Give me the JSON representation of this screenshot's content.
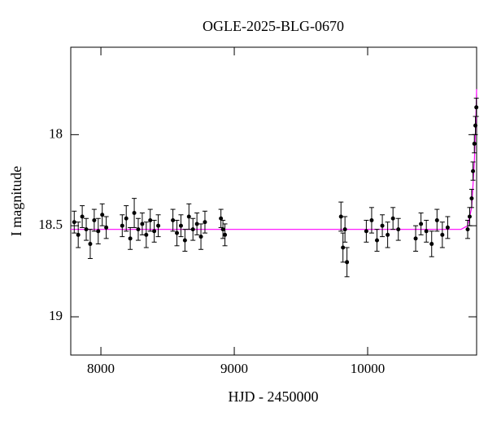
{
  "chart_data": {
    "type": "errorbar-scatter",
    "title": "OGLE-2025-BLG-0670",
    "x_label": "HJD - 2450000",
    "y_label": "I magnitude",
    "xlim": [
      7774,
      10817
    ],
    "xticks": [
      8000,
      9000,
      10000
    ],
    "ylim": [
      19.21,
      17.52
    ],
    "yticks": [
      18,
      18.5,
      19
    ],
    "points": {
      "color": "#000000",
      "x": [
        7800,
        7830,
        7860,
        7890,
        7920,
        7950,
        7980,
        8010,
        8040,
        8160,
        8190,
        8220,
        8250,
        8280,
        8310,
        8340,
        8370,
        8400,
        8430,
        8540,
        8570,
        8600,
        8630,
        8660,
        8690,
        8720,
        8750,
        8780,
        8900,
        8915,
        8930,
        9800,
        9815,
        9830,
        9845,
        9990,
        10030,
        10070,
        10110,
        10150,
        10190,
        10230,
        10360,
        10400,
        10440,
        10480,
        10520,
        10560,
        10600,
        10750,
        10765,
        10780,
        10790,
        10800,
        10808,
        10815
      ],
      "values": [
        18.48,
        18.55,
        18.45,
        18.52,
        18.6,
        18.47,
        18.53,
        18.44,
        18.51,
        18.5,
        18.46,
        18.57,
        18.43,
        18.52,
        18.49,
        18.55,
        18.47,
        18.53,
        18.5,
        18.47,
        18.54,
        18.5,
        18.58,
        18.45,
        18.52,
        18.49,
        18.56,
        18.48,
        18.46,
        18.52,
        18.55,
        18.45,
        18.62,
        18.52,
        18.7,
        18.53,
        18.47,
        18.58,
        18.5,
        18.55,
        18.46,
        18.52,
        18.57,
        18.49,
        18.53,
        18.6,
        18.47,
        18.55,
        18.51,
        18.52,
        18.45,
        18.35,
        18.2,
        18.05,
        17.95,
        17.85
      ],
      "errors": [
        0.06,
        0.07,
        0.06,
        0.06,
        0.08,
        0.06,
        0.07,
        0.06,
        0.06,
        0.06,
        0.07,
        0.06,
        0.08,
        0.06,
        0.06,
        0.07,
        0.06,
        0.06,
        0.06,
        0.06,
        0.07,
        0.06,
        0.06,
        0.07,
        0.06,
        0.06,
        0.07,
        0.06,
        0.05,
        0.05,
        0.06,
        0.08,
        0.08,
        0.07,
        0.08,
        0.06,
        0.07,
        0.06,
        0.06,
        0.07,
        0.06,
        0.06,
        0.07,
        0.06,
        0.06,
        0.07,
        0.06,
        0.07,
        0.06,
        0.05,
        0.05,
        0.05,
        0.05,
        0.05,
        0.05,
        0.05
      ]
    },
    "model": {
      "color": "#ff00ff",
      "x": [
        7774,
        10700,
        10750,
        10780,
        10800,
        10810,
        10817
      ],
      "values": [
        18.52,
        18.52,
        18.5,
        18.4,
        18.15,
        17.95,
        17.75
      ]
    }
  }
}
